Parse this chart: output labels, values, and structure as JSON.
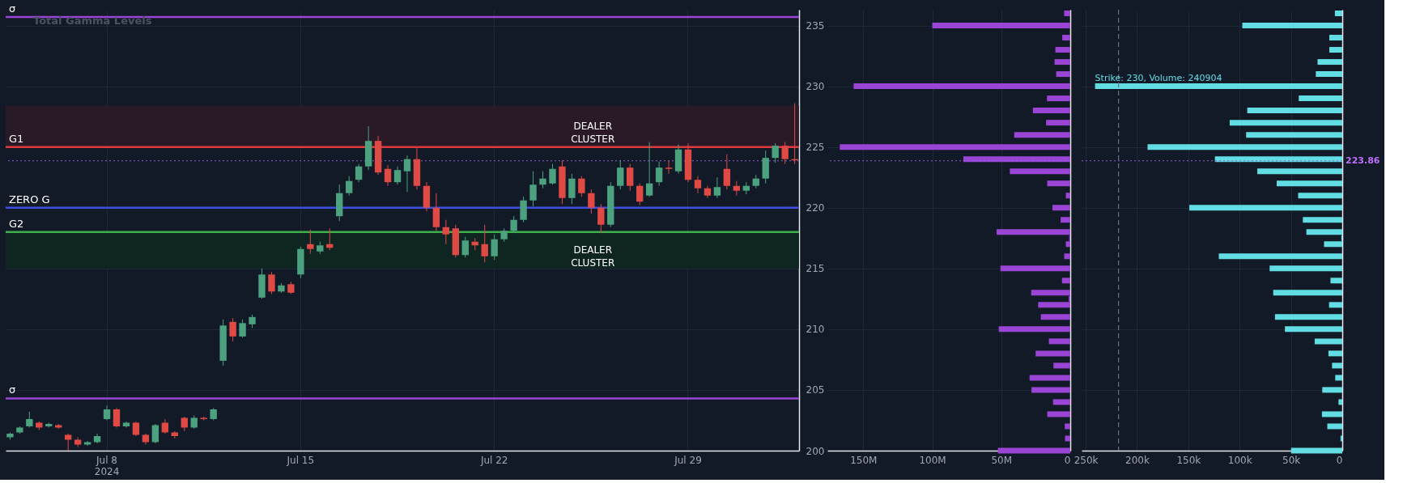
{
  "chart_data": [
    {
      "type": "candlestick",
      "title": "Total Gamma Levels",
      "categories": [
        null,
        null,
        null,
        null,
        null,
        null,
        null,
        null,
        null,
        null,
        "Jul 8\n2024",
        null,
        null,
        null,
        null,
        null,
        null,
        null,
        null,
        null,
        null,
        null,
        null,
        null,
        null,
        null,
        null,
        null,
        null,
        null,
        "Jul 15",
        null,
        null,
        null,
        null,
        null,
        null,
        null,
        null,
        null,
        null,
        null,
        null,
        null,
        null,
        null,
        null,
        null,
        null,
        null,
        "Jul 22",
        null,
        null,
        null,
        null,
        null,
        null,
        null,
        null,
        null,
        null,
        null,
        null,
        null,
        null,
        null,
        null,
        null,
        null,
        null,
        "Jul 29",
        null,
        null,
        null,
        null,
        null,
        null,
        null,
        null,
        null,
        null,
        null
      ],
      "ohlc": [
        [
          201.1,
          201.5,
          200.9,
          201.4
        ],
        [
          201.5,
          202.0,
          201.4,
          201.9
        ],
        [
          202.0,
          203.2,
          201.9,
          202.6
        ],
        [
          202.3,
          202.4,
          201.7,
          201.9
        ],
        [
          202.0,
          202.3,
          201.9,
          202.2
        ],
        [
          202.1,
          202.2,
          201.8,
          201.9
        ],
        [
          201.3,
          201.4,
          200.0,
          200.9
        ],
        [
          200.9,
          201.1,
          200.3,
          200.5
        ],
        [
          200.5,
          200.8,
          200.4,
          200.7
        ],
        [
          200.7,
          201.4,
          200.6,
          201.2
        ],
        [
          202.6,
          203.7,
          202.5,
          203.4
        ],
        [
          203.4,
          203.5,
          201.9,
          202.0
        ],
        [
          202.0,
          202.4,
          201.9,
          202.3
        ],
        [
          202.3,
          202.4,
          201.2,
          201.3
        ],
        [
          201.3,
          201.4,
          200.5,
          200.7
        ],
        [
          200.7,
          202.2,
          200.6,
          202.1
        ],
        [
          202.3,
          202.6,
          201.4,
          201.5
        ],
        [
          201.5,
          201.6,
          201.0,
          201.2
        ],
        [
          202.7,
          202.8,
          201.6,
          201.9
        ],
        [
          201.9,
          202.9,
          201.8,
          202.7
        ],
        [
          202.7,
          202.8,
          202.5,
          202.6
        ],
        [
          202.6,
          203.5,
          202.5,
          203.4
        ],
        [
          207.4,
          210.8,
          207.0,
          210.3
        ],
        [
          210.6,
          210.9,
          209.0,
          209.4
        ],
        [
          209.4,
          210.8,
          209.3,
          210.5
        ],
        [
          210.4,
          211.2,
          210.1,
          211.0
        ],
        [
          212.6,
          215.0,
          212.5,
          214.5
        ],
        [
          214.5,
          214.7,
          212.9,
          213.1
        ],
        [
          213.1,
          213.8,
          213.0,
          213.6
        ],
        [
          213.7,
          213.9,
          212.9,
          213.0
        ],
        [
          214.5,
          216.8,
          214.2,
          216.6
        ],
        [
          217.0,
          218.2,
          216.2,
          216.6
        ],
        [
          216.4,
          217.2,
          216.2,
          216.9
        ],
        [
          217.0,
          218.3,
          216.5,
          216.7
        ],
        [
          219.3,
          221.9,
          218.9,
          221.2
        ],
        [
          221.2,
          222.6,
          221.0,
          222.2
        ],
        [
          222.3,
          223.6,
          222.1,
          223.4
        ],
        [
          223.4,
          226.7,
          223.1,
          225.5
        ],
        [
          225.5,
          225.9,
          222.7,
          222.9
        ],
        [
          223.2,
          223.5,
          221.8,
          222.1
        ],
        [
          222.1,
          223.4,
          221.9,
          223.1
        ],
        [
          223.0,
          224.3,
          221.3,
          224.0
        ],
        [
          224.0,
          224.9,
          221.5,
          221.8
        ],
        [
          221.8,
          222.1,
          219.7,
          220.0
        ],
        [
          220.0,
          221.2,
          218.1,
          218.4
        ],
        [
          218.4,
          219.0,
          217.0,
          217.8
        ],
        [
          218.3,
          218.6,
          215.9,
          216.1
        ],
        [
          216.1,
          217.6,
          215.9,
          217.3
        ],
        [
          217.2,
          217.5,
          216.5,
          216.9
        ],
        [
          217.0,
          218.6,
          215.5,
          216.0
        ],
        [
          216.0,
          217.8,
          215.7,
          217.4
        ],
        [
          217.4,
          218.3,
          217.2,
          218.1
        ],
        [
          218.1,
          219.3,
          217.9,
          219.0
        ],
        [
          219.0,
          220.9,
          218.8,
          220.6
        ],
        [
          220.6,
          223.0,
          220.1,
          221.9
        ],
        [
          221.9,
          223.0,
          221.6,
          222.4
        ],
        [
          222.0,
          223.6,
          221.9,
          223.2
        ],
        [
          223.4,
          223.9,
          220.3,
          220.8
        ],
        [
          220.8,
          222.8,
          220.3,
          222.4
        ],
        [
          222.4,
          222.6,
          220.9,
          221.2
        ],
        [
          221.2,
          221.5,
          219.5,
          220.0
        ],
        [
          220.0,
          220.3,
          217.9,
          218.6
        ],
        [
          218.6,
          222.1,
          218.4,
          221.8
        ],
        [
          221.8,
          223.9,
          221.5,
          223.3
        ],
        [
          223.3,
          223.6,
          221.4,
          221.8
        ],
        [
          221.8,
          222.0,
          220.2,
          220.5
        ],
        [
          221.0,
          225.4,
          220.9,
          222.0
        ],
        [
          222.1,
          223.8,
          221.8,
          223.3
        ],
        [
          223.3,
          223.9,
          222.8,
          223.2
        ],
        [
          223.0,
          225.2,
          222.8,
          224.8
        ],
        [
          224.8,
          225.3,
          222.1,
          222.3
        ],
        [
          222.3,
          222.6,
          221.2,
          221.6
        ],
        [
          221.6,
          221.8,
          220.8,
          221.0
        ],
        [
          221.0,
          222.5,
          220.8,
          221.7
        ],
        [
          223.2,
          224.4,
          221.5,
          221.8
        ],
        [
          221.8,
          222.2,
          221.0,
          221.4
        ],
        [
          221.4,
          222.1,
          221.1,
          221.8
        ],
        [
          221.8,
          222.7,
          221.6,
          222.4
        ],
        [
          222.4,
          224.7,
          222.0,
          224.1
        ],
        [
          224.1,
          225.3,
          223.7,
          225.1
        ],
        [
          225.1,
          225.4,
          223.6,
          224.0
        ],
        [
          224.0,
          228.6,
          223.6,
          223.9
        ]
      ],
      "colors": [
        "#4ca27e",
        "#4ca27e",
        "#4ca27e",
        "#e04a44",
        "#4ca27e",
        "#e04a44",
        "#e04a44",
        "#e04a44",
        "#4ca27e",
        "#4ca27e",
        "#4ca27e",
        "#e04a44",
        "#4ca27e",
        "#e04a44",
        "#e04a44",
        "#4ca27e",
        "#e04a44",
        "#e04a44",
        "#e04a44",
        "#4ca27e",
        "#e04a44",
        "#4ca27e",
        "#4ca27e",
        "#e04a44",
        "#4ca27e",
        "#4ca27e",
        "#4ca27e",
        "#e04a44",
        "#4ca27e",
        "#e04a44",
        "#4ca27e",
        "#e04a44",
        "#4ca27e",
        "#e04a44",
        "#4ca27e",
        "#4ca27e",
        "#4ca27e",
        "#4ca27e",
        "#e04a44",
        "#e04a44",
        "#4ca27e",
        "#4ca27e",
        "#e04a44",
        "#e04a44",
        "#e04a44",
        "#e04a44",
        "#e04a44",
        "#4ca27e",
        "#e04a44",
        "#e04a44",
        "#4ca27e",
        "#4ca27e",
        "#4ca27e",
        "#4ca27e",
        "#4ca27e",
        "#4ca27e",
        "#4ca27e",
        "#e04a44",
        "#4ca27e",
        "#e04a44",
        "#e04a44",
        "#e04a44",
        "#4ca27e",
        "#4ca27e",
        "#e04a44",
        "#e04a44",
        "#4ca27e",
        "#4ca27e",
        "#e04a44",
        "#4ca27e",
        "#e04a44",
        "#e04a44",
        "#e04a44",
        "#4ca27e",
        "#e04a44",
        "#e04a44",
        "#4ca27e",
        "#4ca27e",
        "#4ca27e",
        "#4ca27e",
        "#e04a44",
        "#e04a44"
      ],
      "ylim": [
        200,
        236.3
      ],
      "yticks": [
        200,
        205,
        210,
        215,
        220,
        225,
        230,
        235
      ],
      "grid": true,
      "ref_lines": [
        {
          "axis": "y",
          "value": 235.7,
          "label": "σ",
          "color": "#9b45d6",
          "line_style": "solid"
        },
        {
          "axis": "y",
          "value": 225.0,
          "label": "G1",
          "color": "#e0393e",
          "line_style": "solid"
        },
        {
          "axis": "y",
          "value": 220.0,
          "label": "ZERO G",
          "color": "#3d4fe0",
          "line_style": "solid"
        },
        {
          "axis": "y",
          "value": 218.0,
          "label": "G2",
          "color": "#3fb14a",
          "line_style": "solid"
        },
        {
          "axis": "y",
          "value": 204.3,
          "label": "σ",
          "color": "#9b45d6",
          "line_style": "solid"
        },
        {
          "axis": "y",
          "value": 223.86,
          "color": "#8f5fd8",
          "line_style": "dotted"
        }
      ],
      "bands": [
        {
          "axis": "y",
          "from": 225.0,
          "to": 228.4,
          "label": "DEALER CLUSTER",
          "color": "#2e1b27"
        },
        {
          "axis": "y",
          "from": 215.0,
          "to": 218.0,
          "label": "DEALER CLUSTER",
          "color": "#102720"
        }
      ]
    },
    {
      "type": "bar",
      "orientation": "horizontal",
      "color": "#9b45d6",
      "x": [
        236,
        235,
        234,
        233,
        232,
        231,
        230,
        229,
        228,
        227,
        226,
        225,
        224,
        223,
        222,
        221,
        220,
        219,
        218,
        217.5,
        217,
        216,
        215,
        214,
        213,
        212.5,
        212,
        211,
        210,
        209,
        208,
        207,
        206,
        205,
        204,
        203,
        202,
        201,
        200
      ],
      "values": [
        4400000,
        100000000,
        5800000,
        10800000,
        11400000,
        10200000,
        157000000,
        16900000,
        27100000,
        17500000,
        40600000,
        167000000,
        77500000,
        43800000,
        16700000,
        3200000,
        12900000,
        7000000,
        53400000,
        800000,
        3200000,
        4400000,
        50600000,
        6000000,
        28300000,
        1200000,
        23300000,
        21300000,
        51800000,
        15500000,
        25100000,
        12200000,
        29500000,
        28100000,
        12500000,
        16700000,
        4000000,
        3800000,
        52400000
      ],
      "xlim": [
        176000000,
        0
      ],
      "xticks": [
        {
          "value": 150000000,
          "label": "150M"
        },
        {
          "value": 100000000,
          "label": "100M"
        },
        {
          "value": 50000000,
          "label": "50M"
        },
        0
      ],
      "ylim": [
        200,
        236.3
      ],
      "yticks": [
        200,
        205,
        210,
        215,
        220,
        225,
        230,
        235
      ],
      "tick_labels": "x",
      "grid": true,
      "ref_lines": [
        {
          "axis": "y",
          "value": 223.86,
          "color": "#8f5fd8",
          "line_style": "dotted"
        }
      ]
    },
    {
      "type": "bar",
      "orientation": "horizontal",
      "color": "#62dde3",
      "x": [
        236,
        235,
        234,
        233,
        232,
        231,
        230,
        229,
        228,
        227,
        226,
        225,
        224,
        223,
        222,
        221,
        220,
        219,
        218,
        217.5,
        217,
        216,
        215,
        214,
        213,
        212.5,
        212,
        211,
        210,
        209,
        208,
        207,
        206,
        205,
        204,
        203,
        202,
        201,
        200
      ],
      "values": [
        7200,
        97400,
        12600,
        12600,
        24100,
        25800,
        240904,
        42400,
        92600,
        109700,
        93700,
        189700,
        124100,
        82800,
        63900,
        43000,
        149000,
        38400,
        35000,
        900,
        17800,
        120300,
        70800,
        11500,
        67300,
        null,
        12900,
        65600,
        55900,
        26900,
        13500,
        10000,
        6900,
        19500,
        3700,
        19800,
        14600,
        1700,
        49900
      ],
      "xlim": [
        254000,
        0
      ],
      "xticks": [
        {
          "value": 250000,
          "label": "250k"
        },
        {
          "value": 200000,
          "label": "200k"
        },
        {
          "value": 150000,
          "label": "150k"
        },
        {
          "value": 100000,
          "label": "100k"
        },
        {
          "value": 50000,
          "label": "50k"
        },
        0
      ],
      "ylim": [
        200,
        236.3
      ],
      "yticks": [
        200,
        205,
        210,
        215,
        220,
        225,
        230,
        235
      ],
      "tick_labels": "x",
      "grid": true,
      "ref_lines": [
        {
          "axis": "y",
          "value": 223.86,
          "label": "223.86",
          "color": "#8f5fd8",
          "line_style": "dotted"
        },
        {
          "axis": "x",
          "value": 218000,
          "color": "#6b7280",
          "line_style": "dashed"
        }
      ],
      "annotations": [
        {
          "text": "Strike: 230, Volume: 240904",
          "x": 240904,
          "y": 230
        }
      ]
    }
  ]
}
